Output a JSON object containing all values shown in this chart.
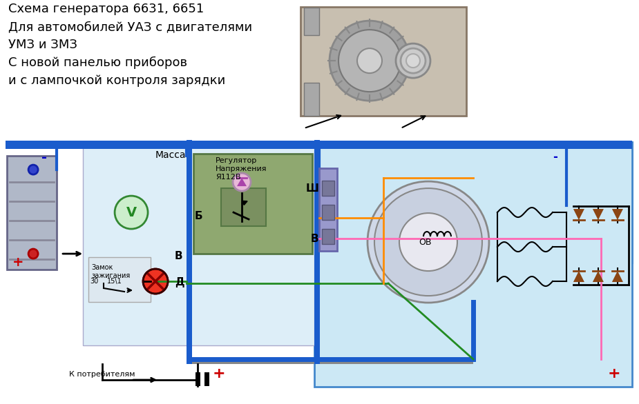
{
  "bg_color": "#ffffff",
  "title_lines": [
    "Схема генератора 6631, 6651",
    "Для автомобилей УАЗ с двигателями",
    "УМЗ и ЗМЗ",
    "С новой панелью приборов",
    "и с лампочкой контроля зарядки"
  ],
  "consumers_label": "К потребителям",
  "massa_label": "Масса",
  "ignition_label1": "Замок",
  "ignition_label2": "зажигания",
  "regulator_label1": "Регулятор",
  "regulator_label2": "Напряжения",
  "regulator_label3": "Я112В",
  "plus_label": "+",
  "minus_label": "-",
  "D_label": "Д",
  "V_label": "В",
  "B_label": "Б",
  "Sh_label": "Ш",
  "OV_label": "ОВ",
  "terminal_30": "30",
  "terminal_15": "15\\1",
  "font_size_title": 13,
  "color_blue_wire": "#1a5ccc",
  "color_green_wire": "#228B22",
  "color_pink_wire": "#ff69b4",
  "color_orange_wire": "#ff8c00",
  "color_red_wire": "#cc0000",
  "color_brown_wire": "#8B4513",
  "color_black_wire": "#000000",
  "color_plus_red": "#cc0000",
  "color_minus_blue": "#0000cc"
}
